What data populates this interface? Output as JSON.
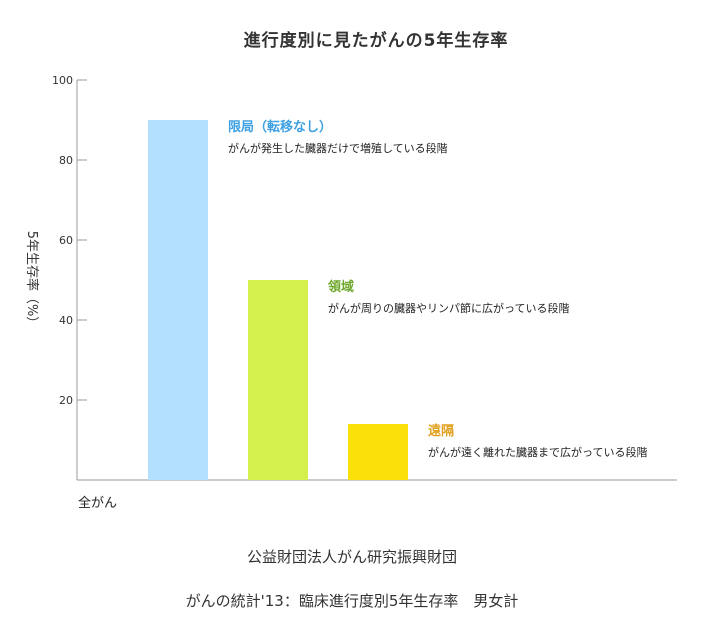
{
  "chart_data": {
    "type": "bar",
    "title": "進行度別に見たがんの5年生存率",
    "ylabel": "5年生存率（%）",
    "xlabel": "",
    "category_label": "全がん",
    "ylim": [
      0,
      100
    ],
    "yticks": [
      20,
      40,
      60,
      80,
      100
    ],
    "grid": false,
    "bars": [
      {
        "name": "限局（転移なし）",
        "value": 90,
        "color": "#b3e0fc",
        "label_color": "#3ea0e3",
        "description": "がんが発生した臓器だけで増殖している段階"
      },
      {
        "name": "領域",
        "value": 50,
        "color": "#d4f04a",
        "label_color": "#6fa82c",
        "description": "がんが周りの臓器やリンパ節に広がっている段階"
      },
      {
        "name": "遠隔",
        "value": 14,
        "color": "#fce00a",
        "label_color": "#e0a020",
        "description": "がんが遠く離れた臓器まで広がっている段階"
      }
    ]
  },
  "source": {
    "line1": "公益財団法人がん研究振興財団",
    "line2": "がんの統計'13：臨床進行度別5年生存率　男女計"
  }
}
